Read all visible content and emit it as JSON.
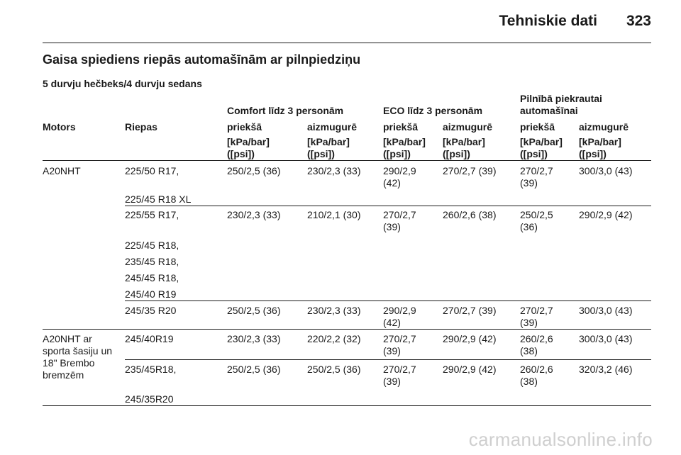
{
  "header": {
    "title": "Tehniskie dati",
    "page_number": "323"
  },
  "section_title": "Gaisa spiediens riepās automašīnām ar pilnpiedziņu",
  "subtitle": "5 durvju hečbeks/4 durvju sedans",
  "table": {
    "group_headers": [
      {
        "lines": [
          "Comfort līdz 3 personām"
        ]
      },
      {
        "lines": [
          "ECO līdz 3 personām"
        ]
      },
      {
        "lines": [
          "Pilnībā piekrautai",
          "automašīnai"
        ]
      }
    ],
    "columns": [
      "Motors",
      "Riepas",
      "priekšā",
      "aizmugurē",
      "priekšā",
      "aizmugurē",
      "priekšā",
      "aizmugurē"
    ],
    "unit_lines": [
      "[kPa/bar]",
      "([psi])"
    ],
    "rows": [
      {
        "motor": [],
        "tyres": [
          "225/50 R17,",
          "225/45 R18 XL"
        ],
        "values": [
          [
            "250/2,5 (36)"
          ],
          [
            "230/2,3 (33)"
          ],
          [
            "290/2,9",
            "(42)"
          ],
          [
            "270/2,7 (39)"
          ],
          [
            "270/2,7",
            "(39)"
          ],
          [
            "300/3,0 (43)"
          ]
        ]
      },
      {
        "motor": [],
        "tyres": [
          "225/55 R17,",
          "225/45 R18,",
          "235/45 R18,",
          "245/45 R18,",
          "245/40 R19"
        ],
        "values": [
          [
            "230/2,3 (33)"
          ],
          [
            "210/2,1 (30)"
          ],
          [
            "270/2,7",
            "(39)"
          ],
          [
            "260/2,6 (38)"
          ],
          [
            "250/2,5",
            "(36)"
          ],
          [
            "290/2,9 (42)"
          ]
        ]
      },
      {
        "motor": [],
        "tyres": [
          "245/35 R20"
        ],
        "values": [
          [
            "250/2,5 (36)"
          ],
          [
            "230/2,3 (33)"
          ],
          [
            "290/2,9",
            "(42)"
          ],
          [
            "270/2,7 (39)"
          ],
          [
            "270/2,7",
            "(39)"
          ],
          [
            "300/3,0 (43)"
          ]
        ]
      },
      {
        "motor": [],
        "tyres": [
          "245/40R19"
        ],
        "values": [
          [
            "230/2,3 (33)"
          ],
          [
            "220/2,2 (32)"
          ],
          [
            "270/2,7",
            "(39)"
          ],
          [
            "290/2,9 (42)"
          ],
          [
            "260/2,6",
            "(38)"
          ],
          [
            "300/3,0 (43)"
          ]
        ]
      },
      {
        "motor": [],
        "tyres": [
          "235/45R18,",
          "245/35R20"
        ],
        "values": [
          [
            "250/2,5 (36)"
          ],
          [
            "250/2,5 (36)"
          ],
          [
            "270/2,7",
            "(39)"
          ],
          [
            "290/2,9 (42)"
          ],
          [
            "260/2,6",
            "(38)"
          ],
          [
            "320/3,2 (46)"
          ]
        ]
      }
    ],
    "motor_labels": [
      {
        "lines": [
          "A20NHT"
        ]
      },
      {
        "lines": [
          "A20NHT ar",
          "sporta šasiju un",
          "18\" Brembo",
          "bremzēm"
        ]
      }
    ]
  },
  "watermark": "carmanualsonline.info"
}
